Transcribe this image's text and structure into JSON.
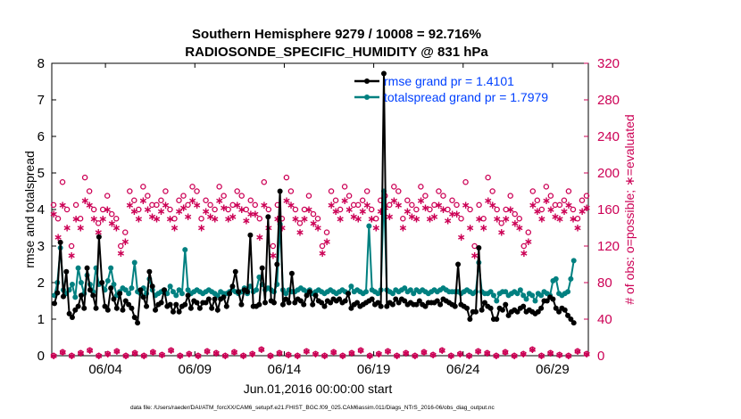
{
  "chart_data": {
    "type": "line",
    "title": "Southern Hemisphere 9279 / 10008 = 92.716%",
    "subtitle": "RADIOSONDE_SPECIFIC_HUMIDITY @ 831 hPa",
    "xlabel": "Jun.01,2016 00:00:00 start",
    "ylabel": "rmse and totalspread",
    "ylabel_right": "# of obs: o=possible; ∗=evaluated",
    "footer": "data file: /Users/raeder/DAI/ATM_forcXX/CAM6_setup/f.e21.FHIST_BGC.f09_025.CAM6assim.011/Diags_NTrS_2016-06/obs_diag_output.nc",
    "xlim": [
      1,
      31
    ],
    "ylim": [
      0,
      8
    ],
    "ylim_right": [
      0,
      320
    ],
    "x_ticks": [
      4,
      9,
      14,
      19,
      24,
      29
    ],
    "x_tick_labels": [
      "06/04",
      "06/09",
      "06/14",
      "06/19",
      "06/24",
      "06/29"
    ],
    "y_ticks": [
      "0",
      "1",
      "2",
      "3",
      "4",
      "5",
      "6",
      "7",
      "8"
    ],
    "y_ticks_right": [
      "0",
      "40",
      "80",
      "120",
      "160",
      "200",
      "240",
      "280",
      "320"
    ],
    "legend_position": "top-right",
    "colors": {
      "rmse": "#000000",
      "spread": "#008080",
      "obs": "#cc0055"
    },
    "series": [
      {
        "name": "rmse grand pr = 1.4101",
        "key": "rmse",
        "values": [
          1.43,
          1.72,
          3.1,
          1.62,
          2.3,
          1.15,
          1.05,
          1.25,
          1.35,
          1.65,
          1.3,
          2.4,
          1.8,
          1.65,
          1.3,
          3.25,
          2.0,
          1.35,
          1.25,
          1.85,
          1.55,
          1.3,
          1.7,
          1.25,
          1.5,
          1.4,
          1.3,
          1.05,
          0.9,
          1.8,
          1.6,
          1.35,
          2.3,
          1.9,
          1.25,
          1.4,
          1.45,
          1.8,
          1.35,
          1.4,
          1.2,
          1.4,
          1.2,
          1.35,
          1.4,
          1.65,
          1.3,
          1.5,
          1.45,
          1.3,
          1.45,
          1.45,
          1.55,
          1.3,
          1.55,
          1.25,
          1.55,
          1.6,
          1.35,
          1.7,
          1.9,
          2.3,
          1.75,
          1.4,
          1.8,
          1.75,
          3.3,
          1.35,
          1.35,
          1.4,
          2.4,
          1.45,
          3.8,
          1.5,
          1.45,
          2.5,
          4.5,
          1.4,
          1.55,
          1.45,
          2.25,
          1.45,
          1.55,
          1.5,
          1.4,
          1.65,
          1.75,
          1.4,
          1.65,
          1.5,
          1.45,
          1.35,
          1.5,
          1.45,
          1.55,
          1.5,
          1.55,
          1.45,
          1.5,
          1.7,
          1.3,
          1.4,
          1.45,
          1.35,
          1.4,
          1.45,
          1.5,
          1.55,
          1.4,
          1.45,
          1.35,
          7.72,
          1.35,
          1.45,
          1.4,
          1.55,
          1.45,
          1.55,
          1.5,
          1.4,
          1.45,
          1.4,
          1.4,
          1.5,
          1.4,
          1.35,
          1.45,
          1.45,
          1.45,
          1.5,
          1.4,
          1.55,
          1.5,
          1.45,
          1.4,
          1.35,
          2.5,
          1.4,
          1.35,
          1.3,
          1.0,
          1.2,
          1.2,
          2.95,
          1.25,
          1.45,
          1.35,
          1.3,
          1.0,
          1.0,
          1.3,
          1.25,
          1.4,
          1.1,
          1.2,
          1.25,
          1.2,
          1.3,
          1.35,
          1.2,
          1.25,
          1.2,
          1.15,
          1.2,
          1.3,
          1.5,
          1.5,
          1.6,
          1.55,
          1.3,
          1.2,
          1.3,
          1.25,
          1.1,
          1.0,
          0.9
        ]
      },
      {
        "name": "totalspread grand pr = 1.7979",
        "key": "spread",
        "values": [
          1.65,
          2.0,
          2.95,
          1.8,
          1.7,
          1.8,
          1.95,
          1.6,
          2.4,
          2.0,
          1.7,
          2.2,
          1.95,
          1.75,
          2.4,
          1.95,
          2.0,
          1.8,
          2.05,
          2.4,
          1.95,
          1.65,
          1.75,
          1.85,
          1.8,
          1.7,
          1.85,
          2.55,
          1.75,
          1.7,
          1.85,
          1.7,
          2.1,
          1.8,
          1.65,
          1.7,
          1.75,
          1.8,
          1.7,
          1.9,
          1.75,
          1.65,
          1.8,
          1.7,
          2.9,
          1.8,
          1.7,
          1.75,
          1.8,
          1.75,
          1.7,
          1.75,
          1.8,
          1.75,
          1.7,
          1.65,
          1.75,
          1.7,
          1.7,
          1.75,
          1.8,
          1.75,
          1.7,
          1.75,
          1.85,
          1.7,
          1.9,
          1.75,
          1.8,
          2.15,
          1.95,
          1.8,
          1.85,
          1.8,
          1.75,
          1.95,
          3.6,
          1.8,
          1.7,
          1.8,
          1.75,
          1.75,
          1.8,
          1.85,
          1.8,
          1.75,
          1.8,
          1.7,
          1.75,
          1.8,
          1.75,
          1.7,
          1.75,
          1.8,
          1.75,
          1.7,
          1.75,
          1.8,
          1.75,
          1.7,
          1.9,
          1.75,
          1.8,
          1.75,
          1.7,
          1.75,
          3.55,
          1.8,
          1.75,
          1.7,
          1.8,
          4.5,
          1.8,
          1.75,
          1.7,
          1.8,
          1.75,
          1.8,
          1.85,
          1.75,
          1.8,
          1.7,
          1.8,
          1.75,
          1.8,
          1.75,
          1.7,
          1.75,
          1.8,
          1.75,
          1.8,
          1.85,
          1.8,
          1.75,
          1.75,
          1.75,
          1.75,
          1.7,
          1.75,
          1.8,
          1.75,
          1.7,
          1.75,
          2.55,
          1.75,
          1.7,
          1.7,
          1.75,
          1.65,
          1.5,
          1.7,
          1.75,
          1.75,
          1.65,
          1.7,
          1.75,
          1.7,
          1.8,
          1.65,
          1.55,
          1.7,
          1.65,
          1.5,
          1.7,
          1.65,
          1.75,
          1.7,
          1.65,
          2.05,
          2.1,
          1.7,
          1.65,
          1.7,
          1.75,
          2.1,
          2.6
        ]
      }
    ],
    "possible_obs_pattern": [
      165,
      150,
      190,
      160,
      120,
      165,
      150,
      195,
      180,
      160,
      145,
      160,
      175,
      155,
      150,
      120,
      135,
      180,
      170,
      160,
      185,
      175,
      165,
      165,
      170,
      180,
      160,
      150,
      170,
      175,
      165,
      185,
      180,
      150,
      170,
      165,
      160,
      185,
      175,
      160,
      165,
      180,
      175,
      160,
      170
    ],
    "evaluated_obs_pattern": [
      155,
      130,
      165,
      140,
      110,
      150,
      140,
      170,
      165,
      150,
      135,
      150,
      160,
      145,
      140,
      112,
      125,
      165,
      158,
      150,
      170,
      160,
      152,
      150,
      158,
      165,
      150,
      140,
      158,
      162,
      152,
      170,
      165,
      140,
      158,
      152,
      150,
      170,
      162,
      150,
      152,
      165,
      160,
      148,
      155
    ],
    "zero_obs_pattern": [
      0,
      4,
      0,
      3,
      6,
      0,
      2,
      5,
      0,
      3,
      0,
      4,
      1,
      6,
      0,
      2,
      0,
      5,
      3,
      0,
      4,
      0,
      2,
      7,
      0,
      3,
      1,
      0,
      5,
      2
    ],
    "n_points": 180
  }
}
